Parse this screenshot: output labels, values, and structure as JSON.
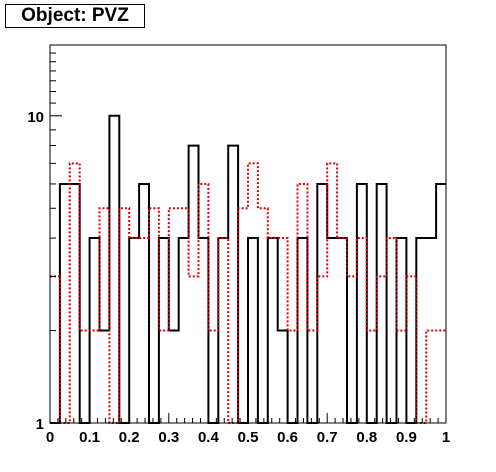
{
  "title": "Object: PVZ",
  "chart_data": {
    "type": "histogram",
    "title": "Object: PVZ",
    "xlabel": "",
    "ylabel": "",
    "xlim": [
      0,
      1
    ],
    "ylim": [
      1,
      17
    ],
    "y_scale": "log",
    "grid": false,
    "x_tick_labels": [
      "0",
      "0.1",
      "0.2",
      "0.3",
      "0.4",
      "0.5",
      "0.6",
      "0.7",
      "0.8",
      "0.9",
      "1"
    ],
    "y_tick_labels": [
      "1",
      "10"
    ],
    "bins": 40,
    "bin_width": 0.025,
    "series": [
      {
        "color": "#000000",
        "line_style": "solid",
        "values": [
          1,
          6,
          6,
          1,
          4,
          2,
          10,
          1,
          4,
          6,
          1,
          4,
          2,
          4,
          8,
          4,
          1,
          4,
          8,
          1,
          4,
          1,
          4,
          2,
          1,
          4,
          1,
          6,
          4,
          4,
          1,
          6,
          1,
          6,
          1,
          4,
          1,
          4,
          4,
          6
        ]
      },
      {
        "color": "#dd0000",
        "line_style": "dotted",
        "values": [
          3,
          1,
          7,
          2,
          2,
          5,
          1,
          5,
          4,
          4,
          5,
          2,
          5,
          5,
          3,
          6,
          2,
          4,
          1,
          5,
          7,
          5,
          4,
          4,
          2,
          6,
          2,
          3,
          7,
          4,
          3,
          4,
          2,
          3,
          4,
          2,
          3,
          1,
          2,
          2
        ]
      }
    ]
  }
}
